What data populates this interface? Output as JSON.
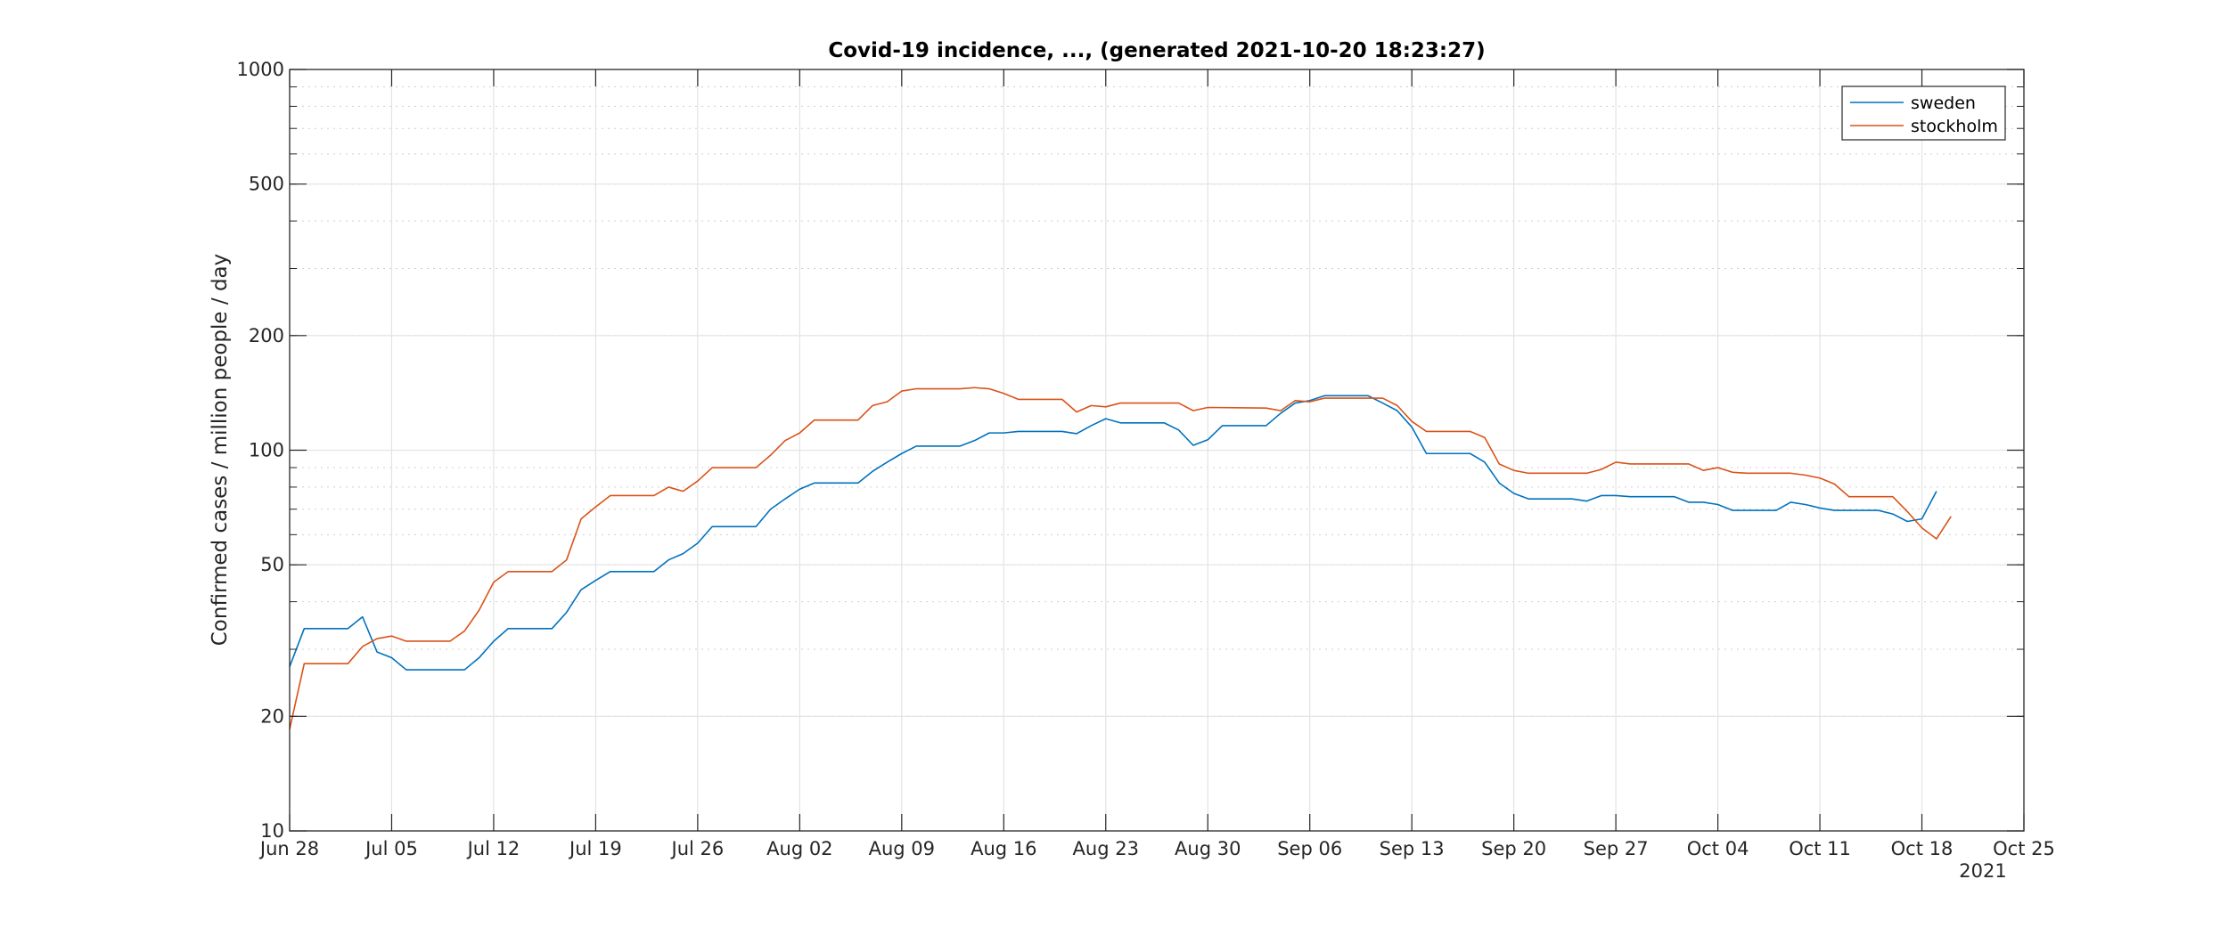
{
  "chart_data": {
    "type": "line",
    "title": "Covid-19 incidence, ..., (generated 2021-10-20 18:23:27)",
    "xlabel": "",
    "ylabel": "Confirmed cases / million people / day",
    "y_scale": "log",
    "ylim": [
      10,
      1000
    ],
    "xlim": [
      "2021-06-28",
      "2021-10-25"
    ],
    "grid": true,
    "minor_grid": true,
    "legend_position": "top-right",
    "year_label": "2021",
    "x_ticks": [
      {
        "date": "2021-06-28",
        "label": "Jun 28"
      },
      {
        "date": "2021-07-05",
        "label": "Jul 05"
      },
      {
        "date": "2021-07-12",
        "label": "Jul 12"
      },
      {
        "date": "2021-07-19",
        "label": "Jul 19"
      },
      {
        "date": "2021-07-26",
        "label": "Jul 26"
      },
      {
        "date": "2021-08-02",
        "label": "Aug 02"
      },
      {
        "date": "2021-08-09",
        "label": "Aug 09"
      },
      {
        "date": "2021-08-16",
        "label": "Aug 16"
      },
      {
        "date": "2021-08-23",
        "label": "Aug 23"
      },
      {
        "date": "2021-08-30",
        "label": "Aug 30"
      },
      {
        "date": "2021-09-06",
        "label": "Sep 06"
      },
      {
        "date": "2021-09-13",
        "label": "Sep 13"
      },
      {
        "date": "2021-09-20",
        "label": "Sep 20"
      },
      {
        "date": "2021-09-27",
        "label": "Sep 27"
      },
      {
        "date": "2021-10-04",
        "label": "Oct 04"
      },
      {
        "date": "2021-10-11",
        "label": "Oct 11"
      },
      {
        "date": "2021-10-18",
        "label": "Oct 18"
      },
      {
        "date": "2021-10-25",
        "label": "Oct 25"
      }
    ],
    "y_ticks": [
      {
        "value": 10,
        "label": "10"
      },
      {
        "value": 20,
        "label": "20"
      },
      {
        "value": 50,
        "label": "50"
      },
      {
        "value": 100,
        "label": "100"
      },
      {
        "value": 200,
        "label": "200"
      },
      {
        "value": 500,
        "label": "500"
      },
      {
        "value": 1000,
        "label": "1000"
      }
    ],
    "series": [
      {
        "name": "sweden",
        "color": "#0072BD",
        "points": [
          [
            "2021-06-28",
            27
          ],
          [
            "2021-06-29",
            34
          ],
          [
            "2021-07-02",
            34
          ],
          [
            "2021-07-03",
            36.5
          ],
          [
            "2021-07-04",
            29.5
          ],
          [
            "2021-07-05",
            28.5
          ],
          [
            "2021-07-06",
            26.5
          ],
          [
            "2021-07-10",
            26.5
          ],
          [
            "2021-07-11",
            28.5
          ],
          [
            "2021-07-12",
            31.5
          ],
          [
            "2021-07-13",
            34
          ],
          [
            "2021-07-16",
            34
          ],
          [
            "2021-07-17",
            37.5
          ],
          [
            "2021-07-18",
            43
          ],
          [
            "2021-07-19",
            45.5
          ],
          [
            "2021-07-20",
            48
          ],
          [
            "2021-07-23",
            48
          ],
          [
            "2021-07-24",
            51.5
          ],
          [
            "2021-07-25",
            53.5
          ],
          [
            "2021-07-26",
            57
          ],
          [
            "2021-07-27",
            63
          ],
          [
            "2021-07-30",
            63
          ],
          [
            "2021-07-31",
            70
          ],
          [
            "2021-08-01",
            74.5
          ],
          [
            "2021-08-02",
            79
          ],
          [
            "2021-08-03",
            82
          ],
          [
            "2021-08-06",
            82
          ],
          [
            "2021-08-07",
            88
          ],
          [
            "2021-08-08",
            93
          ],
          [
            "2021-08-09",
            98
          ],
          [
            "2021-08-10",
            102.5
          ],
          [
            "2021-08-13",
            102.5
          ],
          [
            "2021-08-14",
            106
          ],
          [
            "2021-08-15",
            111
          ],
          [
            "2021-08-16",
            111
          ],
          [
            "2021-08-17",
            112
          ],
          [
            "2021-08-20",
            112
          ],
          [
            "2021-08-21",
            110.5
          ],
          [
            "2021-08-22",
            116
          ],
          [
            "2021-08-23",
            121
          ],
          [
            "2021-08-24",
            118
          ],
          [
            "2021-08-27",
            118
          ],
          [
            "2021-08-28",
            113
          ],
          [
            "2021-08-29",
            103
          ],
          [
            "2021-08-30",
            106.5
          ],
          [
            "2021-08-31",
            116
          ],
          [
            "2021-09-03",
            116
          ],
          [
            "2021-09-04",
            125
          ],
          [
            "2021-09-05",
            133
          ],
          [
            "2021-09-06",
            135
          ],
          [
            "2021-09-07",
            139
          ],
          [
            "2021-09-10",
            139
          ],
          [
            "2021-09-11",
            133
          ],
          [
            "2021-09-12",
            127
          ],
          [
            "2021-09-13",
            115
          ],
          [
            "2021-09-14",
            98
          ],
          [
            "2021-09-17",
            98
          ],
          [
            "2021-09-18",
            93
          ],
          [
            "2021-09-19",
            82
          ],
          [
            "2021-09-20",
            77
          ],
          [
            "2021-09-21",
            74.5
          ],
          [
            "2021-09-24",
            74.5
          ],
          [
            "2021-09-25",
            73.5
          ],
          [
            "2021-09-26",
            76
          ],
          [
            "2021-09-27",
            76
          ],
          [
            "2021-09-28",
            75.5
          ],
          [
            "2021-10-01",
            75.5
          ],
          [
            "2021-10-02",
            73
          ],
          [
            "2021-10-03",
            73
          ],
          [
            "2021-10-04",
            72
          ],
          [
            "2021-10-05",
            69.5
          ],
          [
            "2021-10-08",
            69.5
          ],
          [
            "2021-10-09",
            73
          ],
          [
            "2021-10-10",
            72
          ],
          [
            "2021-10-11",
            70.5
          ],
          [
            "2021-10-12",
            69.5
          ],
          [
            "2021-10-15",
            69.5
          ],
          [
            "2021-10-16",
            68
          ],
          [
            "2021-10-17",
            65
          ],
          [
            "2021-10-18",
            66
          ],
          [
            "2021-10-19",
            78
          ]
        ]
      },
      {
        "name": "stockholm",
        "color": "#D95319",
        "points": [
          [
            "2021-06-28",
            18.5
          ],
          [
            "2021-06-29",
            27.5
          ],
          [
            "2021-07-02",
            27.5
          ],
          [
            "2021-07-03",
            30.5
          ],
          [
            "2021-07-04",
            32
          ],
          [
            "2021-07-05",
            32.5
          ],
          [
            "2021-07-06",
            31.5
          ],
          [
            "2021-07-09",
            31.5
          ],
          [
            "2021-07-10",
            33.5
          ],
          [
            "2021-07-11",
            38
          ],
          [
            "2021-07-12",
            45
          ],
          [
            "2021-07-13",
            48
          ],
          [
            "2021-07-16",
            48
          ],
          [
            "2021-07-17",
            51.5
          ],
          [
            "2021-07-18",
            66
          ],
          [
            "2021-07-19",
            71
          ],
          [
            "2021-07-20",
            76
          ],
          [
            "2021-07-23",
            76
          ],
          [
            "2021-07-24",
            80
          ],
          [
            "2021-07-25",
            78
          ],
          [
            "2021-07-26",
            83
          ],
          [
            "2021-07-27",
            90
          ],
          [
            "2021-07-30",
            90
          ],
          [
            "2021-07-31",
            97
          ],
          [
            "2021-08-01",
            106
          ],
          [
            "2021-08-02",
            111
          ],
          [
            "2021-08-03",
            120
          ],
          [
            "2021-08-06",
            120
          ],
          [
            "2021-08-07",
            131
          ],
          [
            "2021-08-08",
            134
          ],
          [
            "2021-08-09",
            143
          ],
          [
            "2021-08-10",
            145
          ],
          [
            "2021-08-13",
            145
          ],
          [
            "2021-08-14",
            146
          ],
          [
            "2021-08-15",
            145
          ],
          [
            "2021-08-16",
            141
          ],
          [
            "2021-08-17",
            136
          ],
          [
            "2021-08-20",
            136
          ],
          [
            "2021-08-21",
            126
          ],
          [
            "2021-08-22",
            131
          ],
          [
            "2021-08-23",
            130
          ],
          [
            "2021-08-24",
            133
          ],
          [
            "2021-08-28",
            133
          ],
          [
            "2021-08-29",
            127
          ],
          [
            "2021-08-30",
            129.5
          ],
          [
            "2021-09-03",
            129
          ],
          [
            "2021-09-04",
            127
          ],
          [
            "2021-09-05",
            135
          ],
          [
            "2021-09-06",
            134
          ],
          [
            "2021-09-07",
            137
          ],
          [
            "2021-09-11",
            137
          ],
          [
            "2021-09-12",
            131
          ],
          [
            "2021-09-13",
            119
          ],
          [
            "2021-09-14",
            112
          ],
          [
            "2021-09-17",
            112
          ],
          [
            "2021-09-18",
            108
          ],
          [
            "2021-09-19",
            92
          ],
          [
            "2021-09-20",
            88.5
          ],
          [
            "2021-09-21",
            87
          ],
          [
            "2021-09-25",
            87
          ],
          [
            "2021-09-26",
            89
          ],
          [
            "2021-09-27",
            93
          ],
          [
            "2021-09-28",
            92
          ],
          [
            "2021-10-02",
            92
          ],
          [
            "2021-10-03",
            88.5
          ],
          [
            "2021-10-04",
            90
          ],
          [
            "2021-10-05",
            87.5
          ],
          [
            "2021-10-06",
            87
          ],
          [
            "2021-10-09",
            87
          ],
          [
            "2021-10-10",
            86
          ],
          [
            "2021-10-11",
            84.5
          ],
          [
            "2021-10-12",
            81.5
          ],
          [
            "2021-10-13",
            75.5
          ],
          [
            "2021-10-16",
            75.5
          ],
          [
            "2021-10-17",
            69
          ],
          [
            "2021-10-18",
            62.5
          ],
          [
            "2021-10-19",
            58.5
          ],
          [
            "2021-10-20",
            67
          ]
        ]
      }
    ]
  }
}
